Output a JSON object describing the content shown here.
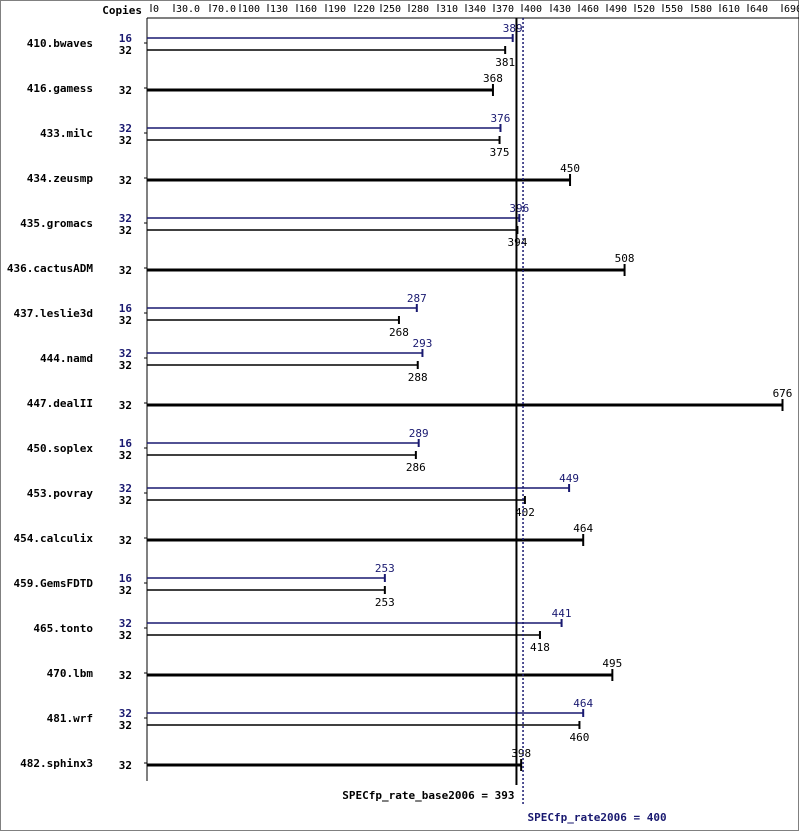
{
  "chart_data": {
    "type": "bar",
    "x_axis": {
      "label": "Copies",
      "ticks": [
        "0",
        "30.0",
        "70.0",
        "100",
        "130",
        "160",
        "190",
        "220",
        "250",
        "280",
        "310",
        "340",
        "370",
        "400",
        "430",
        "460",
        "490",
        "520",
        "550",
        "580",
        "610",
        "640",
        "690"
      ],
      "tick_values": [
        0,
        30,
        70,
        100,
        130,
        160,
        190,
        220,
        250,
        280,
        310,
        340,
        370,
        400,
        430,
        460,
        490,
        520,
        550,
        580,
        610,
        640,
        690
      ]
    },
    "colors": {
      "base": "#000000",
      "peak": "#191970"
    },
    "benchmarks": [
      {
        "name": "410.bwaves",
        "peak": {
          "copies": "16",
          "value": 389
        },
        "base": {
          "copies": "32",
          "value": 381
        }
      },
      {
        "name": "416.gamess",
        "peak": null,
        "base": {
          "copies": "32",
          "value": 368
        }
      },
      {
        "name": "433.milc",
        "peak": {
          "copies": "32",
          "value": 376
        },
        "base": {
          "copies": "32",
          "value": 375
        }
      },
      {
        "name": "434.zeusmp",
        "peak": null,
        "base": {
          "copies": "32",
          "value": 450
        }
      },
      {
        "name": "435.gromacs",
        "peak": {
          "copies": "32",
          "value": 396
        },
        "base": {
          "copies": "32",
          "value": 394
        }
      },
      {
        "name": "436.cactusADM",
        "peak": null,
        "base": {
          "copies": "32",
          "value": 508
        }
      },
      {
        "name": "437.leslie3d",
        "peak": {
          "copies": "16",
          "value": 287
        },
        "base": {
          "copies": "32",
          "value": 268
        }
      },
      {
        "name": "444.namd",
        "peak": {
          "copies": "32",
          "value": 293
        },
        "base": {
          "copies": "32",
          "value": 288
        }
      },
      {
        "name": "447.dealII",
        "peak": null,
        "base": {
          "copies": "32",
          "value": 676
        }
      },
      {
        "name": "450.soplex",
        "peak": {
          "copies": "16",
          "value": 289
        },
        "base": {
          "copies": "32",
          "value": 286
        }
      },
      {
        "name": "453.povray",
        "peak": {
          "copies": "32",
          "value": 449
        },
        "base": {
          "copies": "32",
          "value": 402
        }
      },
      {
        "name": "454.calculix",
        "peak": null,
        "base": {
          "copies": "32",
          "value": 464
        }
      },
      {
        "name": "459.GemsFDTD",
        "peak": {
          "copies": "16",
          "value": 253
        },
        "base": {
          "copies": "32",
          "value": 253
        }
      },
      {
        "name": "465.tonto",
        "peak": {
          "copies": "32",
          "value": 441
        },
        "base": {
          "copies": "32",
          "value": 418
        }
      },
      {
        "name": "470.lbm",
        "peak": null,
        "base": {
          "copies": "32",
          "value": 495
        }
      },
      {
        "name": "481.wrf",
        "peak": {
          "copies": "32",
          "value": 464
        },
        "base": {
          "copies": "32",
          "value": 460
        }
      },
      {
        "name": "482.sphinx3",
        "peak": null,
        "base": {
          "copies": "32",
          "value": 398
        }
      }
    ],
    "reference_lines": [
      {
        "id": "base",
        "label": "SPECfp_rate_base2006 = 393",
        "value": 393
      },
      {
        "id": "peak",
        "label": "SPECfp_rate2006 = 400",
        "value": 400
      }
    ]
  }
}
